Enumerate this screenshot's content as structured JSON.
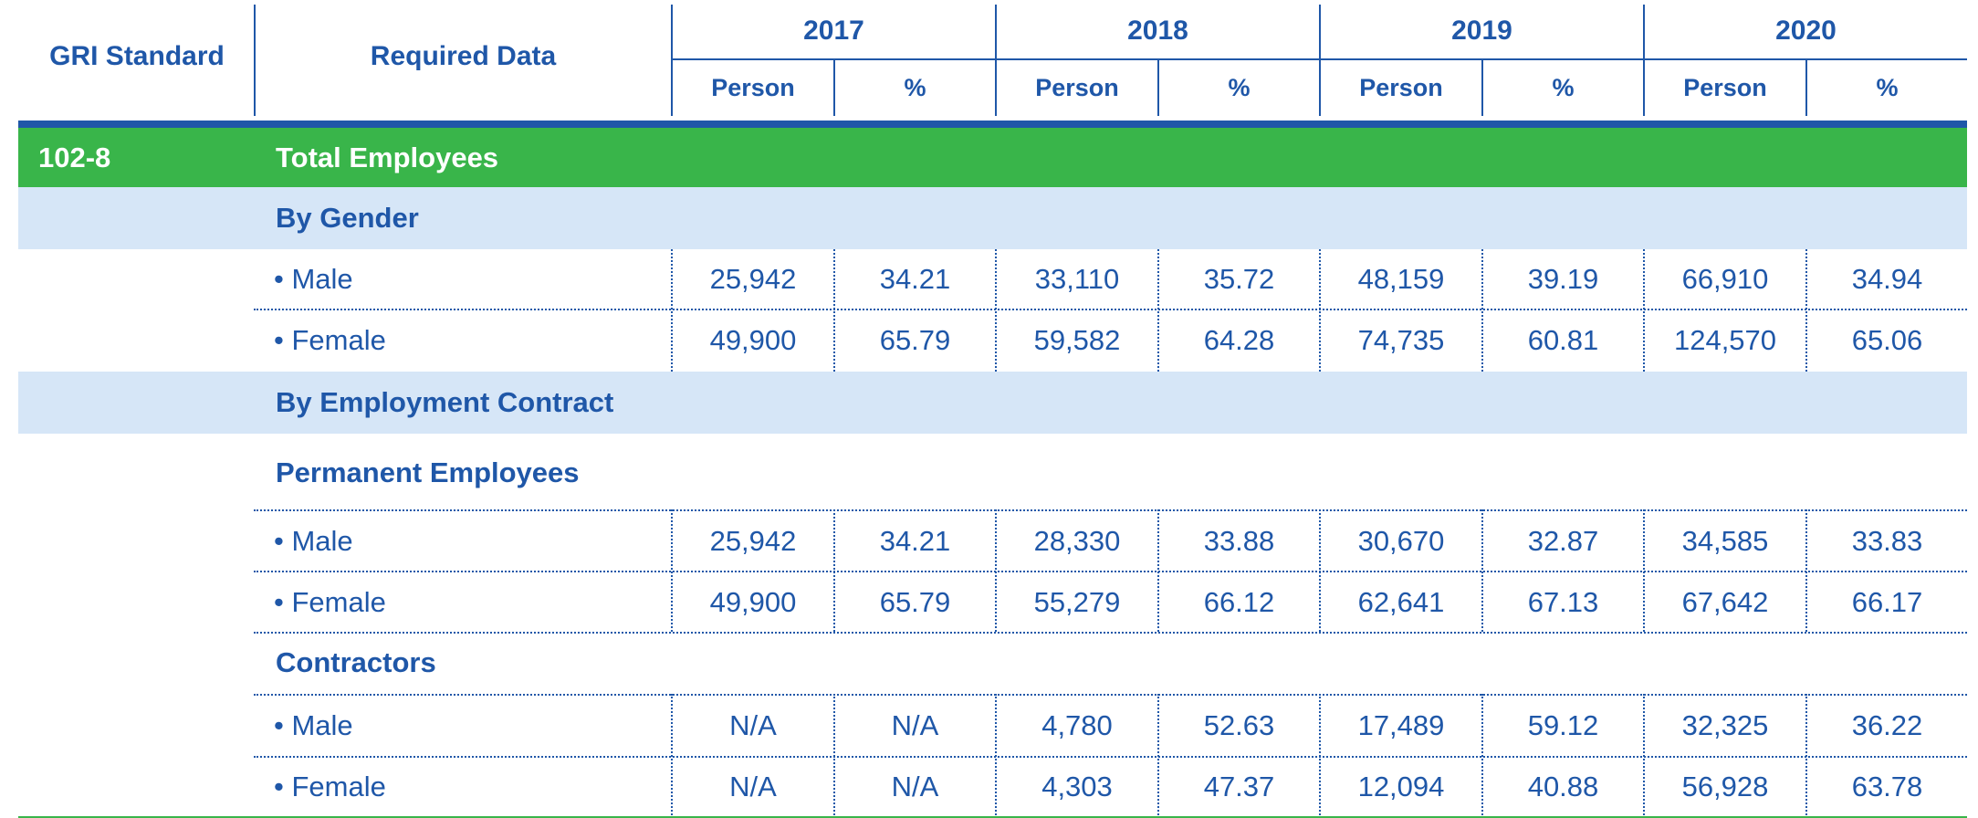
{
  "header": {
    "gri_standard": "GRI Standard",
    "required_data": "Required Data",
    "years": [
      "2017",
      "2018",
      "2019",
      "2020"
    ],
    "person_label": "Person",
    "percent_label": "%"
  },
  "section": {
    "code": "102-8",
    "title": "Total Employees"
  },
  "by_gender": {
    "title": "By Gender",
    "rows": [
      {
        "label": "• Male",
        "values": [
          "25,942",
          "34.21",
          "33,110",
          "35.72",
          "48,159",
          "39.19",
          "66,910",
          "34.94"
        ]
      },
      {
        "label": "• Female",
        "values": [
          "49,900",
          "65.79",
          "59,582",
          "64.28",
          "74,735",
          "60.81",
          "124,570",
          "65.06"
        ]
      }
    ]
  },
  "by_contract": {
    "title": "By Employment Contract",
    "permanent": {
      "title": "Permanent Employees",
      "rows": [
        {
          "label": "• Male",
          "values": [
            "25,942",
            "34.21",
            "28,330",
            "33.88",
            "30,670",
            "32.87",
            "34,585",
            "33.83"
          ]
        },
        {
          "label": "• Female",
          "values": [
            "49,900",
            "65.79",
            "55,279",
            "66.12",
            "62,641",
            "67.13",
            "67,642",
            "66.17"
          ]
        }
      ]
    },
    "contractors": {
      "title": "Contractors",
      "rows": [
        {
          "label": "• Male",
          "values": [
            "N/A",
            "N/A",
            "4,780",
            "52.63",
            "17,489",
            "59.12",
            "32,325",
            "36.22"
          ]
        },
        {
          "label": "• Female",
          "values": [
            "N/A",
            "N/A",
            "4,303",
            "47.37",
            "12,094",
            "40.88",
            "56,928",
            "63.78"
          ]
        }
      ]
    }
  },
  "colors": {
    "primary_blue": "#1f57a8",
    "section_green": "#39b54a",
    "subsection_blue": "#d6e6f7"
  }
}
